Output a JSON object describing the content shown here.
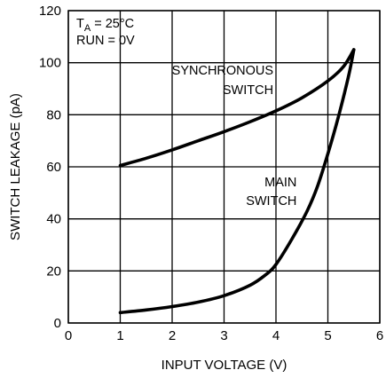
{
  "chart_data": {
    "type": "line",
    "xlabel": "INPUT VOLTAGE (V)",
    "ylabel": "SWITCH LEAKAGE (pA)",
    "xlim": [
      0,
      6
    ],
    "ylim": [
      0,
      120
    ],
    "xticks": [
      "0",
      "1",
      "2",
      "3",
      "4",
      "5",
      "6"
    ],
    "yticks": [
      "0",
      "20",
      "40",
      "60",
      "80",
      "100",
      "120"
    ],
    "grid": true,
    "conditions": [
      {
        "id": "ta",
        "main": "T",
        "sub": "A",
        "rest": " = 25°C"
      },
      {
        "id": "run",
        "text": "RUN = 0V"
      }
    ],
    "annotations": [
      {
        "id": "synchronous-switch-label",
        "lines": [
          "SYNCHRONOUS",
          "SWITCH"
        ],
        "anchor": "end",
        "at": [
          3.95,
          95.5
        ],
        "line_step": 7.5
      },
      {
        "id": "main-switch-label",
        "lines": [
          "MAIN",
          "SWITCH"
        ],
        "anchor": "end",
        "at": [
          4.4,
          52.5
        ],
        "line_step": 7.2
      }
    ],
    "series": [
      {
        "id": "synchronous-switch",
        "color": "#000000",
        "x": [
          1.0,
          1.5,
          2.0,
          2.5,
          3.0,
          3.5,
          4.0,
          4.5,
          5.0,
          5.3,
          5.5
        ],
        "y": [
          60.5,
          63.3,
          66.5,
          70.0,
          73.5,
          77.3,
          81.5,
          86.5,
          93.0,
          98.5,
          105.0
        ]
      },
      {
        "id": "main-switch",
        "color": "#000000",
        "x": [
          1.0,
          1.5,
          2.0,
          2.5,
          3.0,
          3.5,
          3.8,
          4.0,
          4.3,
          4.6,
          4.8,
          5.0,
          5.2,
          5.4,
          5.5
        ],
        "y": [
          4.0,
          5.0,
          6.3,
          8.0,
          10.5,
          14.5,
          18.5,
          22.5,
          32.0,
          43.0,
          52.5,
          65.0,
          79.0,
          95.0,
          105.0
        ]
      }
    ]
  }
}
